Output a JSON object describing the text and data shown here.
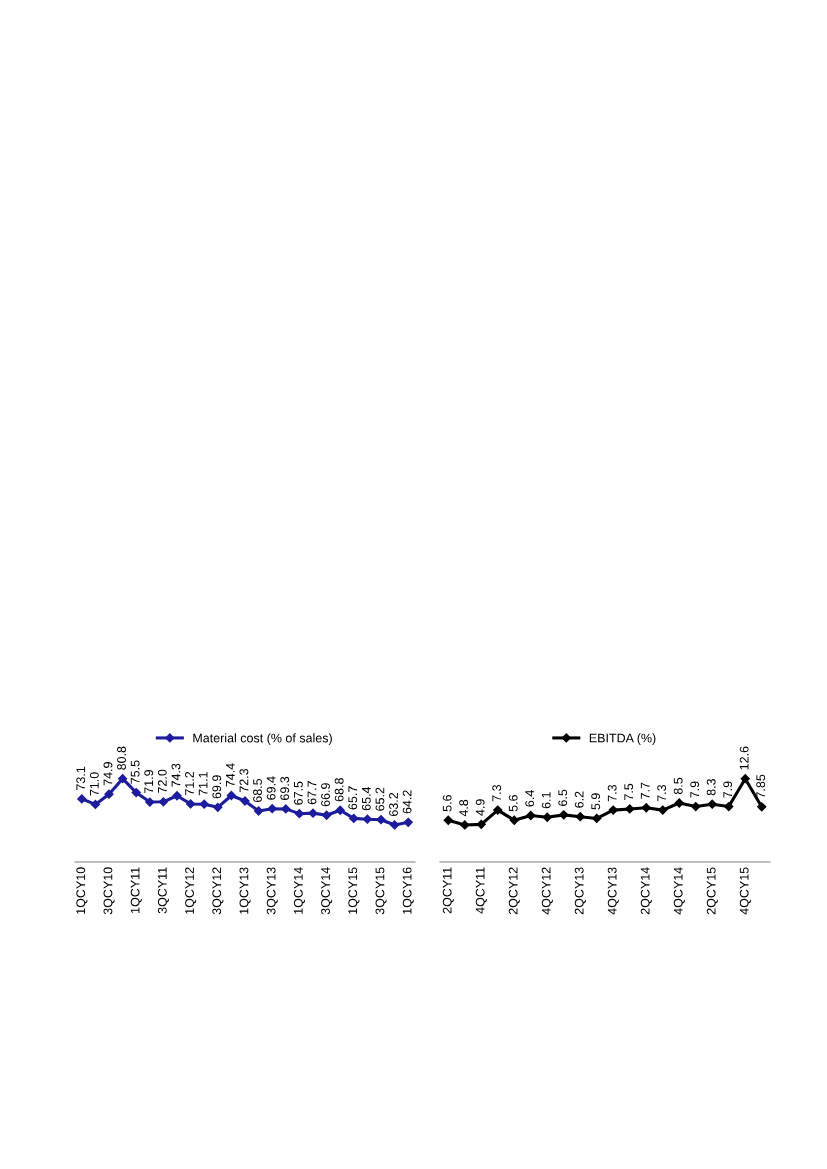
{
  "chart_data": [
    {
      "type": "line",
      "categories": [
        "1QCY10",
        null,
        "3QCY10",
        null,
        "1QCY11",
        null,
        "3QCY11",
        null,
        "1QCY12",
        null,
        "3QCY12",
        null,
        "1QCY13",
        null,
        "3QCY13",
        null,
        "1QCY14",
        null,
        "3QCY14",
        null,
        "1QCY15",
        null,
        "3QCY15",
        null,
        "1QCY16"
      ],
      "series": [
        {
          "name": "Material cost (% of sales)",
          "color": "#1c1c9c",
          "values": [
            73.1,
            71.0,
            74.9,
            80.8,
            75.5,
            71.9,
            72.0,
            74.3,
            71.2,
            71.1,
            69.9,
            74.4,
            72.3,
            68.5,
            69.4,
            69.3,
            67.5,
            67.7,
            66.9,
            68.8,
            65.7,
            65.4,
            65.2,
            63.2,
            64.2
          ],
          "value_labels": [
            "73.1",
            "71.0",
            "74.9",
            "80.8",
            "75.5",
            "71.9",
            "72.0",
            "74.3",
            "71.2",
            "71.1",
            "69.9",
            "74.4",
            "72.3",
            "68.5",
            "69.4",
            "69.3",
            "67.5",
            "67.7",
            "66.9",
            "68.8",
            "65.7",
            "65.4",
            "65.2",
            "63.2",
            "64.2"
          ]
        }
      ],
      "marker": "diamond",
      "line_style": "solid",
      "legend": "top",
      "grid": false,
      "tick_labels": "x"
    },
    {
      "type": "line",
      "categories": [
        "2QCY11",
        null,
        "4QCY11",
        null,
        "2QCY12",
        null,
        "4QCY12",
        null,
        "2QCY13",
        null,
        "4QCY13",
        null,
        "2QCY14",
        null,
        "4QCY14",
        null,
        "2QCY15",
        null,
        "4QCY15",
        null
      ],
      "series": [
        {
          "name": "EBITDA (%)",
          "color": "#000000",
          "values": [
            5.6,
            4.8,
            4.9,
            7.3,
            5.6,
            6.4,
            6.1,
            6.5,
            6.2,
            5.9,
            7.3,
            7.5,
            7.7,
            7.3,
            8.5,
            7.9,
            8.3,
            7.9,
            12.6,
            7.85
          ],
          "value_labels": [
            "5.6",
            "4.8",
            "4.9",
            "7.3",
            "5.6",
            "6.4",
            "6.1",
            "6.5",
            "6.2",
            "5.9",
            "7.3",
            "7.5",
            "7.7",
            "7.3",
            "8.5",
            "7.9",
            "8.3",
            "7.9",
            "12.6",
            "7.85"
          ]
        }
      ],
      "marker": "diamond",
      "line_style": "solid",
      "legend": "top",
      "grid": false,
      "tick_labels": "x"
    }
  ]
}
